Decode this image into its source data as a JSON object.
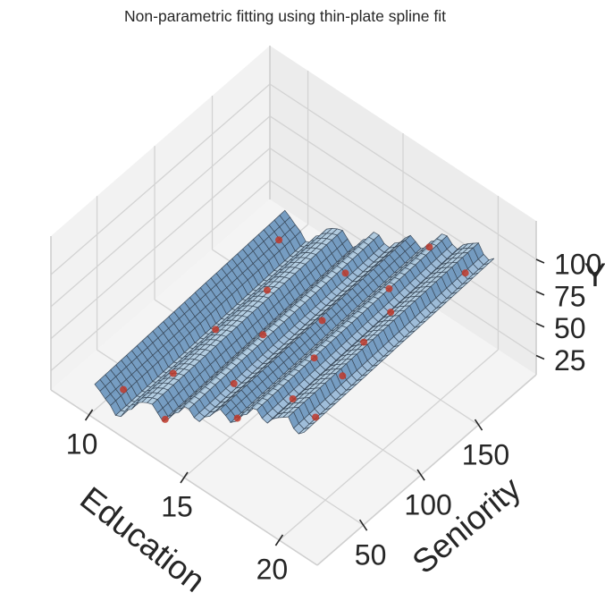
{
  "chart_data": {
    "type": "surface3d",
    "title": "Non-parametric fitting using thin-plate spline fit",
    "xlabel": "Education",
    "ylabel": "Seniority",
    "zlabel": "Y",
    "xlim": [
      8,
      22
    ],
    "ylim": [
      10,
      200
    ],
    "zlim": [
      10,
      130
    ],
    "x_ticks": [
      10,
      15,
      20
    ],
    "y_ticks": [
      50,
      100,
      150
    ],
    "z_ticks": [
      25,
      50,
      75,
      100
    ],
    "grid": true,
    "surface": {
      "x_range": [
        10,
        21
      ],
      "y_range": [
        15,
        180
      ],
      "education_profile": [
        [
          10,
          30
        ],
        [
          10.6,
          24
        ],
        [
          11.2,
          16
        ],
        [
          11.8,
          28
        ],
        [
          12.4,
          40
        ],
        [
          13,
          44
        ],
        [
          13.6,
          36
        ],
        [
          14.2,
          48
        ],
        [
          14.8,
          60
        ],
        [
          15.4,
          54
        ],
        [
          16,
          64
        ],
        [
          16.6,
          75
        ],
        [
          17.2,
          70
        ],
        [
          17.8,
          82
        ],
        [
          18.4,
          94
        ],
        [
          19,
          88
        ],
        [
          19.6,
          98
        ],
        [
          20.2,
          104
        ],
        [
          20.6,
          95
        ],
        [
          21,
          100
        ]
      ],
      "seniority_slope": 0.04,
      "face_color": "#a7c5dd",
      "edge_color": "#3b4a5a"
    },
    "points": [
      {
        "education": 10.6,
        "seniority": 30,
        "y": 20
      },
      {
        "education": 11.2,
        "seniority": 100,
        "y": 18
      },
      {
        "education": 10.9,
        "seniority": 160,
        "y": 38
      },
      {
        "education": 11.4,
        "seniority": 60,
        "y": 17
      },
      {
        "education": 12.1,
        "seniority": 130,
        "y": 34
      },
      {
        "education": 13.4,
        "seniority": 20,
        "y": 32
      },
      {
        "education": 14.3,
        "seniority": 90,
        "y": 52
      },
      {
        "education": 15.2,
        "seniority": 50,
        "y": 54
      },
      {
        "education": 15.0,
        "seniority": 150,
        "y": 60
      },
      {
        "education": 16.2,
        "seniority": 110,
        "y": 66
      },
      {
        "education": 17.2,
        "seniority": 20,
        "y": 70
      },
      {
        "education": 17.6,
        "seniority": 80,
        "y": 74
      },
      {
        "education": 17.9,
        "seniority": 140,
        "y": 84
      },
      {
        "education": 18.2,
        "seniority": 170,
        "y": 96
      },
      {
        "education": 18.9,
        "seniority": 40,
        "y": 86
      },
      {
        "education": 19.2,
        "seniority": 120,
        "y": 94
      },
      {
        "education": 19.6,
        "seniority": 90,
        "y": 98
      },
      {
        "education": 20.3,
        "seniority": 60,
        "y": 102
      },
      {
        "education": 20.7,
        "seniority": 160,
        "y": 108
      },
      {
        "education": 21.0,
        "seniority": 25,
        "y": 104
      }
    ],
    "point_color": "#c0392b"
  }
}
